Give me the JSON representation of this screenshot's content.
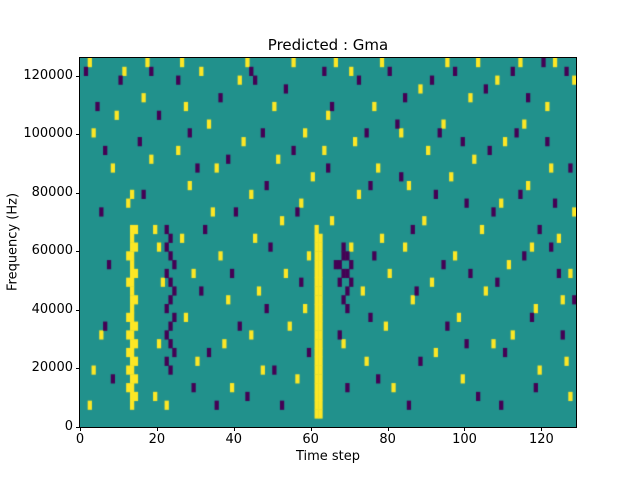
{
  "title": "Predicted : Gma",
  "chart_data": {
    "type": "heatmap",
    "title": "Predicted : Gma",
    "xlabel": "Time step",
    "ylabel": "Frequency (Hz)",
    "x_range": [
      0,
      129
    ],
    "y_range": [
      0,
      126000
    ],
    "x_ticks": [
      0,
      20,
      40,
      60,
      80,
      100,
      120
    ],
    "y_ticks": [
      0,
      20000,
      40000,
      60000,
      80000,
      100000,
      120000
    ],
    "legend_position": "none",
    "grid": false,
    "colors": {
      "background": "#21918c",
      "high": "#fde725",
      "low": "#440154"
    },
    "cell_size": {
      "x": 1,
      "y": 3000
    },
    "yellow_cells": [
      [
        12,
        12000
      ],
      [
        12,
        18000
      ],
      [
        12,
        24000
      ],
      [
        12,
        30000
      ],
      [
        12,
        36000
      ],
      [
        12,
        48000
      ],
      [
        12,
        57000
      ],
      [
        12,
        75000
      ],
      [
        13,
        6000
      ],
      [
        13,
        9000
      ],
      [
        13,
        12000
      ],
      [
        13,
        15000
      ],
      [
        13,
        18000
      ],
      [
        13,
        21000
      ],
      [
        13,
        24000
      ],
      [
        13,
        27000
      ],
      [
        13,
        30000
      ],
      [
        13,
        33000
      ],
      [
        13,
        36000
      ],
      [
        13,
        39000
      ],
      [
        13,
        42000
      ],
      [
        13,
        45000
      ],
      [
        13,
        48000
      ],
      [
        13,
        51000
      ],
      [
        13,
        54000
      ],
      [
        13,
        57000
      ],
      [
        13,
        60000
      ],
      [
        13,
        63000
      ],
      [
        13,
        66000
      ],
      [
        13,
        78000
      ],
      [
        14,
        9000
      ],
      [
        14,
        15000
      ],
      [
        14,
        21000
      ],
      [
        14,
        27000
      ],
      [
        14,
        33000
      ],
      [
        14,
        42000
      ],
      [
        14,
        51000
      ],
      [
        14,
        60000
      ],
      [
        14,
        66000
      ],
      [
        61,
        3000
      ],
      [
        61,
        6000
      ],
      [
        61,
        9000
      ],
      [
        61,
        12000
      ],
      [
        61,
        15000
      ],
      [
        61,
        18000
      ],
      [
        61,
        21000
      ],
      [
        61,
        24000
      ],
      [
        61,
        27000
      ],
      [
        61,
        30000
      ],
      [
        61,
        33000
      ],
      [
        61,
        36000
      ],
      [
        61,
        39000
      ],
      [
        61,
        42000
      ],
      [
        61,
        45000
      ],
      [
        61,
        48000
      ],
      [
        61,
        51000
      ],
      [
        61,
        54000
      ],
      [
        61,
        57000
      ],
      [
        61,
        60000
      ],
      [
        61,
        63000
      ],
      [
        62,
        3000
      ],
      [
        62,
        6000
      ],
      [
        62,
        9000
      ],
      [
        62,
        12000
      ],
      [
        62,
        15000
      ],
      [
        62,
        18000
      ],
      [
        62,
        21000
      ],
      [
        62,
        24000
      ],
      [
        62,
        27000
      ],
      [
        62,
        30000
      ],
      [
        62,
        33000
      ],
      [
        62,
        36000
      ],
      [
        62,
        39000
      ],
      [
        62,
        42000
      ],
      [
        62,
        45000
      ],
      [
        62,
        48000
      ],
      [
        62,
        51000
      ],
      [
        62,
        54000
      ],
      [
        62,
        57000
      ],
      [
        62,
        60000
      ],
      [
        62,
        63000
      ],
      [
        61,
        66000
      ],
      [
        2,
        123000
      ],
      [
        3,
        99000
      ],
      [
        5,
        30000
      ],
      [
        3,
        18000
      ],
      [
        2,
        6000
      ],
      [
        8,
        87000
      ],
      [
        9,
        105000
      ],
      [
        11,
        120000
      ],
      [
        17,
        123000
      ],
      [
        16,
        111000
      ],
      [
        18,
        90000
      ],
      [
        19,
        66000
      ],
      [
        20,
        60000
      ],
      [
        21,
        48000
      ],
      [
        20,
        27000
      ],
      [
        19,
        9000
      ],
      [
        22,
        6000
      ],
      [
        26,
        123000
      ],
      [
        27,
        108000
      ],
      [
        25,
        93000
      ],
      [
        28,
        81000
      ],
      [
        26,
        63000
      ],
      [
        29,
        51000
      ],
      [
        27,
        36000
      ],
      [
        30,
        21000
      ],
      [
        31,
        120000
      ],
      [
        33,
        102000
      ],
      [
        35,
        87000
      ],
      [
        34,
        72000
      ],
      [
        36,
        57000
      ],
      [
        38,
        42000
      ],
      [
        37,
        27000
      ],
      [
        39,
        12000
      ],
      [
        41,
        117000
      ],
      [
        43,
        123000
      ],
      [
        42,
        96000
      ],
      [
        44,
        78000
      ],
      [
        45,
        63000
      ],
      [
        46,
        45000
      ],
      [
        44,
        30000
      ],
      [
        47,
        18000
      ],
      [
        50,
        108000
      ],
      [
        51,
        90000
      ],
      [
        52,
        69000
      ],
      [
        53,
        51000
      ],
      [
        55,
        123000
      ],
      [
        54,
        33000
      ],
      [
        56,
        15000
      ],
      [
        58,
        99000
      ],
      [
        57,
        75000
      ],
      [
        59,
        57000
      ],
      [
        58,
        39000
      ],
      [
        60,
        84000
      ],
      [
        63,
        93000
      ],
      [
        64,
        105000
      ],
      [
        66,
        123000
      ],
      [
        65,
        69000
      ],
      [
        68,
        27000
      ],
      [
        70,
        120000
      ],
      [
        71,
        96000
      ],
      [
        72,
        78000
      ],
      [
        70,
        60000
      ],
      [
        73,
        45000
      ],
      [
        74,
        21000
      ],
      [
        76,
        108000
      ],
      [
        77,
        87000
      ],
      [
        78,
        123000
      ],
      [
        78,
        63000
      ],
      [
        80,
        51000
      ],
      [
        79,
        33000
      ],
      [
        81,
        12000
      ],
      [
        83,
        99000
      ],
      [
        85,
        81000
      ],
      [
        84,
        60000
      ],
      [
        86,
        42000
      ],
      [
        88,
        114000
      ],
      [
        90,
        93000
      ],
      [
        89,
        69000
      ],
      [
        91,
        48000
      ],
      [
        92,
        24000
      ],
      [
        95,
        123000
      ],
      [
        94,
        102000
      ],
      [
        96,
        84000
      ],
      [
        97,
        57000
      ],
      [
        98,
        36000
      ],
      [
        99,
        15000
      ],
      [
        101,
        111000
      ],
      [
        103,
        123000
      ],
      [
        102,
        90000
      ],
      [
        104,
        66000
      ],
      [
        105,
        45000
      ],
      [
        107,
        27000
      ],
      [
        108,
        117000
      ],
      [
        110,
        96000
      ],
      [
        109,
        75000
      ],
      [
        111,
        54000
      ],
      [
        112,
        30000
      ],
      [
        114,
        123000
      ],
      [
        115,
        102000
      ],
      [
        116,
        81000
      ],
      [
        117,
        60000
      ],
      [
        118,
        39000
      ],
      [
        119,
        18000
      ],
      [
        121,
        108000
      ],
      [
        123,
        123000
      ],
      [
        122,
        87000
      ],
      [
        124,
        63000
      ],
      [
        125,
        42000
      ],
      [
        126,
        21000
      ],
      [
        127,
        9000
      ],
      [
        128,
        117000
      ],
      [
        128,
        72000
      ],
      [
        127,
        51000
      ]
    ],
    "purple_cells": [
      [
        22,
        66000
      ],
      [
        23,
        63000
      ],
      [
        22,
        60000
      ],
      [
        23,
        57000
      ],
      [
        24,
        54000
      ],
      [
        22,
        51000
      ],
      [
        23,
        48000
      ],
      [
        24,
        45000
      ],
      [
        23,
        42000
      ],
      [
        22,
        39000
      ],
      [
        24,
        36000
      ],
      [
        23,
        33000
      ],
      [
        22,
        30000
      ],
      [
        23,
        27000
      ],
      [
        24,
        24000
      ],
      [
        22,
        21000
      ],
      [
        23,
        18000
      ],
      [
        68,
        60000
      ],
      [
        69,
        57000
      ],
      [
        67,
        54000
      ],
      [
        68,
        51000
      ],
      [
        70,
        48000
      ],
      [
        69,
        45000
      ],
      [
        68,
        42000
      ],
      [
        67,
        48000
      ],
      [
        69,
        51000
      ],
      [
        70,
        54000
      ],
      [
        68,
        57000
      ],
      [
        69,
        39000
      ],
      [
        1,
        120000
      ],
      [
        4,
        108000
      ],
      [
        6,
        93000
      ],
      [
        5,
        72000
      ],
      [
        7,
        54000
      ],
      [
        6,
        33000
      ],
      [
        8,
        15000
      ],
      [
        10,
        117000
      ],
      [
        15,
        96000
      ],
      [
        16,
        78000
      ],
      [
        18,
        120000
      ],
      [
        20,
        105000
      ],
      [
        25,
        117000
      ],
      [
        28,
        99000
      ],
      [
        30,
        87000
      ],
      [
        32,
        66000
      ],
      [
        31,
        45000
      ],
      [
        33,
        24000
      ],
      [
        36,
        111000
      ],
      [
        38,
        90000
      ],
      [
        40,
        72000
      ],
      [
        39,
        51000
      ],
      [
        41,
        33000
      ],
      [
        43,
        9000
      ],
      [
        45,
        117000
      ],
      [
        47,
        99000
      ],
      [
        48,
        81000
      ],
      [
        49,
        60000
      ],
      [
        48,
        39000
      ],
      [
        50,
        18000
      ],
      [
        53,
        114000
      ],
      [
        55,
        93000
      ],
      [
        56,
        72000
      ],
      [
        57,
        48000
      ],
      [
        59,
        24000
      ],
      [
        63,
        120000
      ],
      [
        65,
        108000
      ],
      [
        64,
        87000
      ],
      [
        66,
        54000
      ],
      [
        67,
        30000
      ],
      [
        69,
        12000
      ],
      [
        72,
        117000
      ],
      [
        74,
        99000
      ],
      [
        75,
        81000
      ],
      [
        76,
        57000
      ],
      [
        75,
        36000
      ],
      [
        77,
        15000
      ],
      [
        80,
        120000
      ],
      [
        82,
        102000
      ],
      [
        83,
        84000
      ],
      [
        84,
        111000
      ],
      [
        86,
        66000
      ],
      [
        87,
        45000
      ],
      [
        88,
        21000
      ],
      [
        91,
        117000
      ],
      [
        93,
        99000
      ],
      [
        92,
        78000
      ],
      [
        94,
        54000
      ],
      [
        95,
        33000
      ],
      [
        97,
        120000
      ],
      [
        99,
        96000
      ],
      [
        100,
        75000
      ],
      [
        101,
        51000
      ],
      [
        100,
        27000
      ],
      [
        103,
        9000
      ],
      [
        105,
        114000
      ],
      [
        106,
        93000
      ],
      [
        107,
        72000
      ],
      [
        108,
        48000
      ],
      [
        110,
        24000
      ],
      [
        112,
        120000
      ],
      [
        113,
        99000
      ],
      [
        114,
        78000
      ],
      [
        116,
        111000
      ],
      [
        115,
        57000
      ],
      [
        117,
        36000
      ],
      [
        118,
        12000
      ],
      [
        120,
        123000
      ],
      [
        122,
        60000
      ],
      [
        121,
        96000
      ],
      [
        123,
        75000
      ],
      [
        124,
        51000
      ],
      [
        125,
        30000
      ],
      [
        126,
        120000
      ],
      [
        127,
        87000
      ],
      [
        128,
        42000
      ],
      [
        119,
        66000
      ],
      [
        44,
        120000
      ],
      [
        29,
        12000
      ],
      [
        35,
        6000
      ],
      [
        52,
        6000
      ],
      [
        85,
        6000
      ],
      [
        109,
        6000
      ]
    ]
  }
}
